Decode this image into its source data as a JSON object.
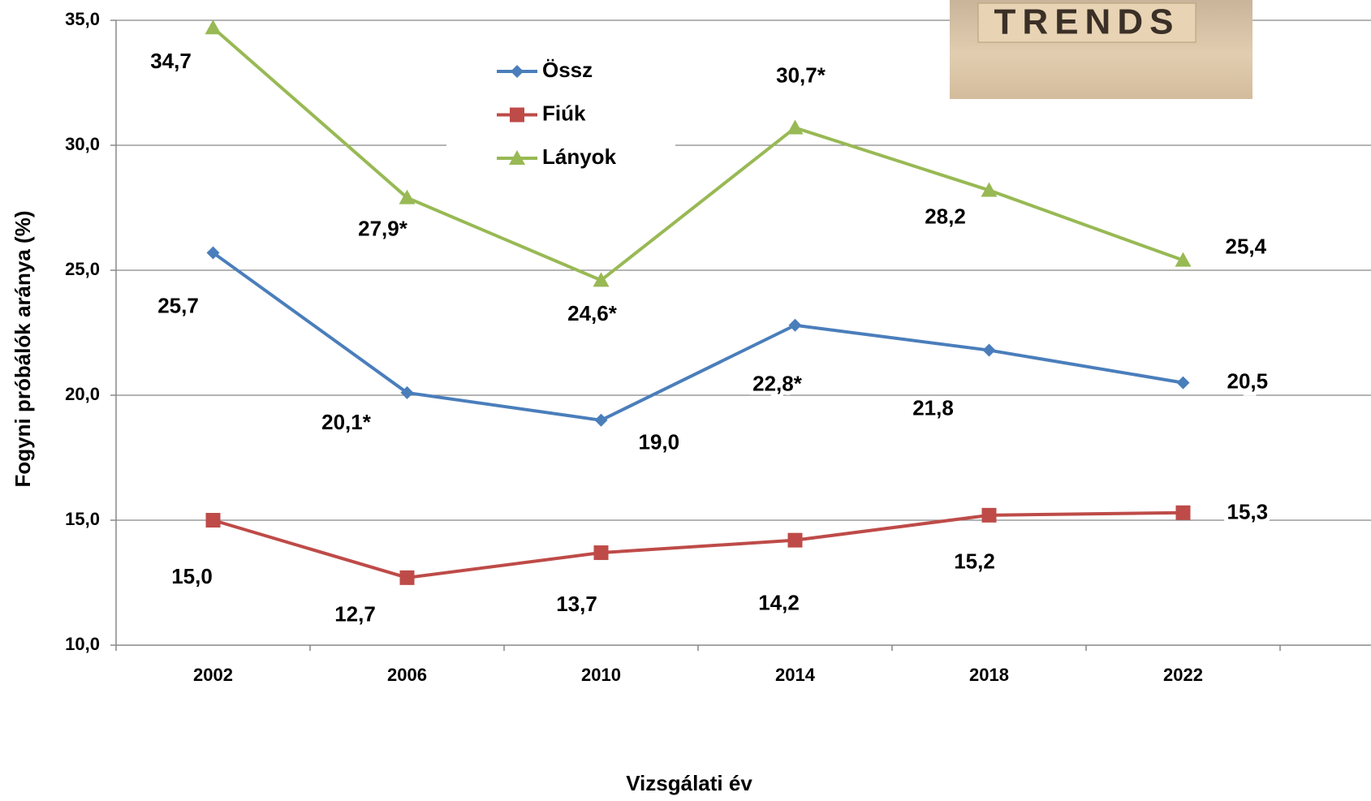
{
  "chart_data": {
    "type": "line",
    "x_label": "Vizsgálati év",
    "y_label": "Fogyni próbálók aránya (%)",
    "categories": [
      "2002",
      "2006",
      "2010",
      "2014",
      "2018",
      "2022"
    ],
    "series": [
      {
        "name": "Össz",
        "color": "#4a7ebb",
        "marker": "diamond",
        "values": [
          25.7,
          20.1,
          19.0,
          22.8,
          21.8,
          20.5
        ],
        "value_labels": [
          "25,7",
          "20,1*",
          "19,0",
          "22,8*",
          "21,8",
          "20,5"
        ]
      },
      {
        "name": "Fiúk",
        "color": "#be4b48",
        "marker": "square",
        "values": [
          15.0,
          12.7,
          13.7,
          14.2,
          15.2,
          15.3
        ],
        "value_labels": [
          "15,0",
          "12,7",
          "13,7",
          "14,2",
          "15,2",
          "15,3"
        ]
      },
      {
        "name": "Lányok",
        "color": "#98b954",
        "marker": "triangle",
        "values": [
          34.7,
          27.9,
          24.6,
          30.7,
          28.2,
          25.4
        ],
        "value_labels": [
          "34,7",
          "27,9*",
          "24,6*",
          "30,7*",
          "28,2",
          "25,4"
        ]
      }
    ],
    "ylim": [
      10,
      35
    ],
    "yticks": [
      {
        "value": 10,
        "label": "10,0"
      },
      {
        "value": 15,
        "label": "15,0"
      },
      {
        "value": 20,
        "label": "20,0"
      },
      {
        "value": 25,
        "label": "25,0"
      },
      {
        "value": 30,
        "label": "30,0"
      },
      {
        "value": 35,
        "label": "35,0"
      }
    ],
    "grid": true,
    "image_text": "TRENDS"
  }
}
